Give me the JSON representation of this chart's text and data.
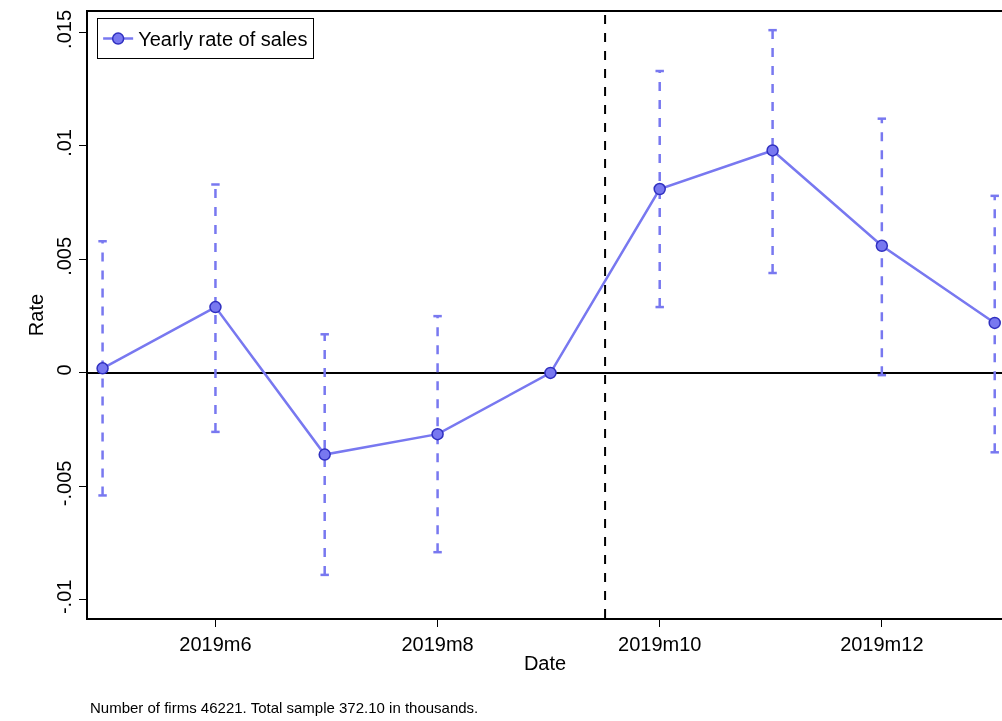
{
  "chart_data": {
    "type": "line",
    "xlabel": "Date",
    "ylabel": "Rate",
    "x": [
      "2019-05",
      "2019-06",
      "2019-07",
      "2019-08",
      "2019-09",
      "2019-10",
      "2019-11",
      "2019-12",
      "2020-01"
    ],
    "series": [
      {
        "name": "Yearly rate of sales",
        "color": "#7878f0",
        "values": [
          0.0002,
          0.0029,
          -0.0036,
          -0.0027,
          0,
          0.0081,
          0.0098,
          0.0056,
          0.0022
        ],
        "errors": [
          [
            -0.0054,
            0.0058
          ],
          [
            -0.0026,
            0.0083
          ],
          [
            -0.0089,
            0.0017
          ],
          [
            -0.0079,
            0.0025
          ],
          null,
          [
            0.0029,
            0.0133
          ],
          [
            0.0044,
            0.0151
          ],
          [
            -0.0001,
            0.0112
          ],
          [
            -0.0035,
            0.0078
          ]
        ]
      }
    ],
    "xlim": [
      "2019-04-27",
      "2020-01-03"
    ],
    "xticks": [
      {
        "value": "2019-06",
        "label": "2019m6"
      },
      {
        "value": "2019-08",
        "label": "2019m8"
      },
      {
        "value": "2019-10",
        "label": "2019m10"
      },
      {
        "value": "2019-12",
        "label": "2019m12"
      }
    ],
    "ylim": [
      -0.0108,
      0.0159
    ],
    "yticks": [
      {
        "value": -0.01,
        "label": "-.01"
      },
      {
        "value": -0.005,
        "label": "-.005"
      },
      {
        "value": 0,
        "label": "0"
      },
      {
        "value": 0.005,
        "label": ".005"
      },
      {
        "value": 0.01,
        "label": ".01"
      },
      {
        "value": 0.015,
        "label": ".015"
      }
    ],
    "ref_lines": [
      {
        "axis": "x",
        "value": "2019-09-16",
        "line_style": "dashed",
        "color": "#000000"
      },
      {
        "axis": "y",
        "value": 0,
        "line_style": "solid",
        "color": "#000000"
      }
    ],
    "annotations": [
      "Number of firms 46221. Total sample 372.10 in thousands."
    ],
    "grid": false,
    "legend": "top left",
    "marker": "circle",
    "line_style": "solid"
  }
}
